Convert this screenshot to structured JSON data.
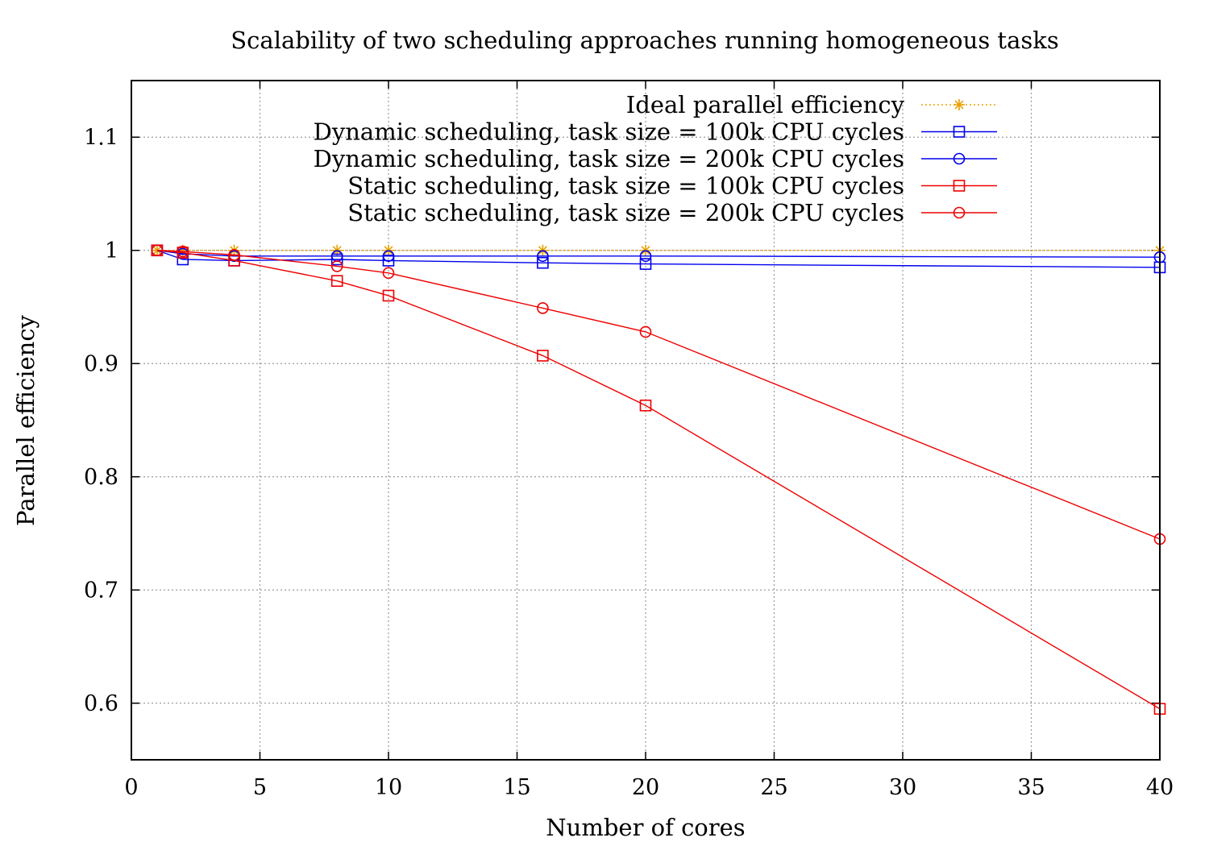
{
  "chart_data": {
    "type": "line",
    "title": "Scalability of two scheduling approaches running homogeneous tasks",
    "xlabel": "Number of cores",
    "ylabel": "Parallel efficiency",
    "xlim": [
      0,
      40
    ],
    "ylim": [
      0.55,
      1.15
    ],
    "xticks": [
      0,
      5,
      10,
      15,
      20,
      25,
      30,
      35,
      40
    ],
    "yticks": [
      0.6,
      0.7,
      0.8,
      0.9,
      1,
      1.1
    ],
    "xtick_labels": [
      "0",
      "5",
      "10",
      "15",
      "20",
      "25",
      "30",
      "35",
      "40"
    ],
    "ytick_labels": [
      "0.6",
      "0.7",
      "0.8",
      "0.9",
      "1",
      "1.1"
    ],
    "grid": true,
    "legend_position": "top-right",
    "series": [
      {
        "name": "Ideal parallel efficiency",
        "color": "#e8a000",
        "marker": "star",
        "line": "dotted",
        "x": [
          1,
          2,
          4,
          8,
          10,
          16,
          20,
          40
        ],
        "y": [
          1,
          1,
          1,
          1,
          1,
          1,
          1,
          1
        ]
      },
      {
        "name": "Dynamic scheduling, task size = 100k CPU cycles",
        "color": "#0000ee",
        "marker": "square",
        "line": "solid",
        "x": [
          1,
          2,
          4,
          8,
          10,
          16,
          20,
          40
        ],
        "y": [
          1.0,
          0.992,
          0.991,
          0.992,
          0.991,
          0.989,
          0.988,
          0.985
        ]
      },
      {
        "name": "Dynamic scheduling, task size = 200k CPU cycles",
        "color": "#0000ee",
        "marker": "circle",
        "line": "solid",
        "x": [
          1,
          2,
          4,
          8,
          10,
          16,
          20,
          40
        ],
        "y": [
          1.0,
          0.997,
          0.995,
          0.995,
          0.995,
          0.995,
          0.995,
          0.994
        ]
      },
      {
        "name": "Static scheduling, task size = 100k CPU cycles",
        "color": "#ee0000",
        "marker": "square",
        "line": "solid",
        "x": [
          1,
          2,
          4,
          8,
          10,
          16,
          20,
          40
        ],
        "y": [
          1.0,
          0.998,
          0.991,
          0.973,
          0.96,
          0.907,
          0.863,
          0.595
        ]
      },
      {
        "name": "Static scheduling, task size = 200k CPU cycles",
        "color": "#ee0000",
        "marker": "circle",
        "line": "solid",
        "x": [
          1,
          2,
          4,
          8,
          10,
          16,
          20,
          40
        ],
        "y": [
          1.0,
          0.999,
          0.996,
          0.986,
          0.98,
          0.949,
          0.928,
          0.745
        ]
      }
    ]
  }
}
